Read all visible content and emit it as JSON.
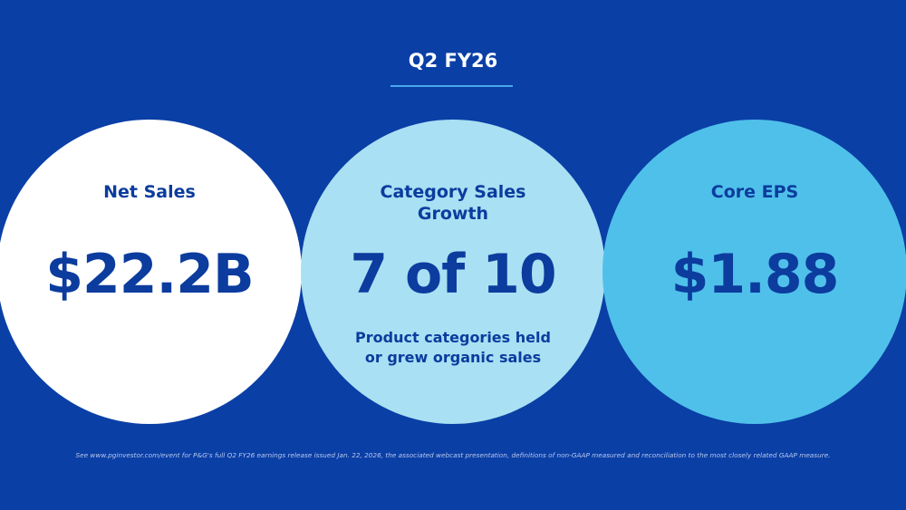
{
  "header": {
    "title": "Q2 FY26"
  },
  "metrics": [
    {
      "label": "Net Sales",
      "value": "$22.2B"
    },
    {
      "label_line1": "Category Sales",
      "label_line2": "Growth",
      "value": "7 of 10",
      "sub_line1": "Product categories held",
      "sub_line2": "or grew organic sales"
    },
    {
      "label": "Core EPS",
      "value": "$1.88"
    }
  ],
  "footer": {
    "text": "See www.pginvestor.com/event for P&G's full Q2 FY26 earnings release issued Jan. 22, 2026, the associated webcast presentation, definitions of non-GAAP measured and reconciliation to the most closely related GAAP measure."
  }
}
